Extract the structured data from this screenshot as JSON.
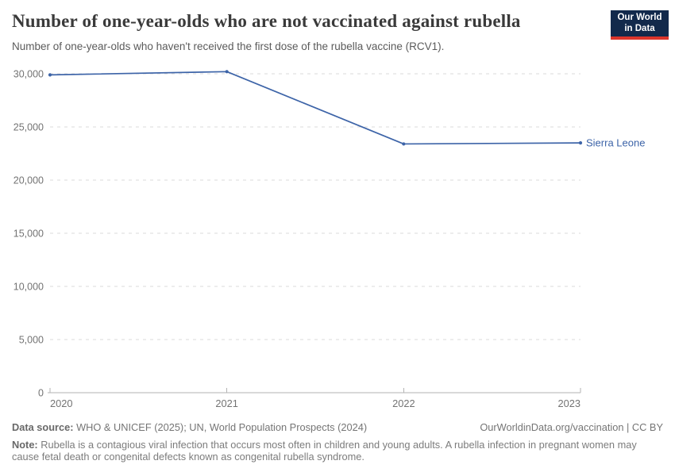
{
  "header": {
    "title": "Number of one-year-olds who are not vaccinated against rubella",
    "subtitle": "Number of one-year-olds who haven't received the first dose of the rubella vaccine (RCV1).",
    "logo": {
      "line1": "Our World",
      "line2": "in Data",
      "bg_color": "#12294B",
      "stripe_color": "#DC352B"
    }
  },
  "chart_data": {
    "type": "line",
    "title": "Number of one-year-olds who are not vaccinated against rubella",
    "subtitle": "Number of one-year-olds who haven't received the first dose of the rubella vaccine (RCV1).",
    "x": [
      2020,
      2021,
      2022,
      2023
    ],
    "series": [
      {
        "name": "Sierra Leone",
        "values": [
          29900,
          30200,
          23400,
          23500
        ],
        "color": "#3D64A8"
      }
    ],
    "x_tick_labels": [
      "2020",
      "2021",
      "2022",
      "2023"
    ],
    "y_ticks": [
      0,
      5000,
      10000,
      15000,
      20000,
      25000,
      30000
    ],
    "ylim": [
      0,
      30000
    ],
    "xlabel": "",
    "ylabel": "",
    "grid": "horizontal-dashed",
    "legend_position": "end-of-line-label",
    "entity_label": "Sierra Leone",
    "colors": {
      "line": "#3D64A8",
      "gridline": "#DBDBDB",
      "axis": "#B3B3B3",
      "tick_label": "#737373"
    }
  },
  "footer": {
    "datasource_label": "Data source:",
    "datasource_text": "WHO & UNICEF (2025); UN, World Population Prospects (2024)",
    "citation": "OurWorldinData.org/vaccination | CC BY",
    "note_label": "Note:",
    "note_text": "Rubella is a contagious viral infection that occurs most often in children and young adults. A rubella infection in pregnant women may cause fetal death or congenital defects known as congenital rubella syndrome."
  }
}
